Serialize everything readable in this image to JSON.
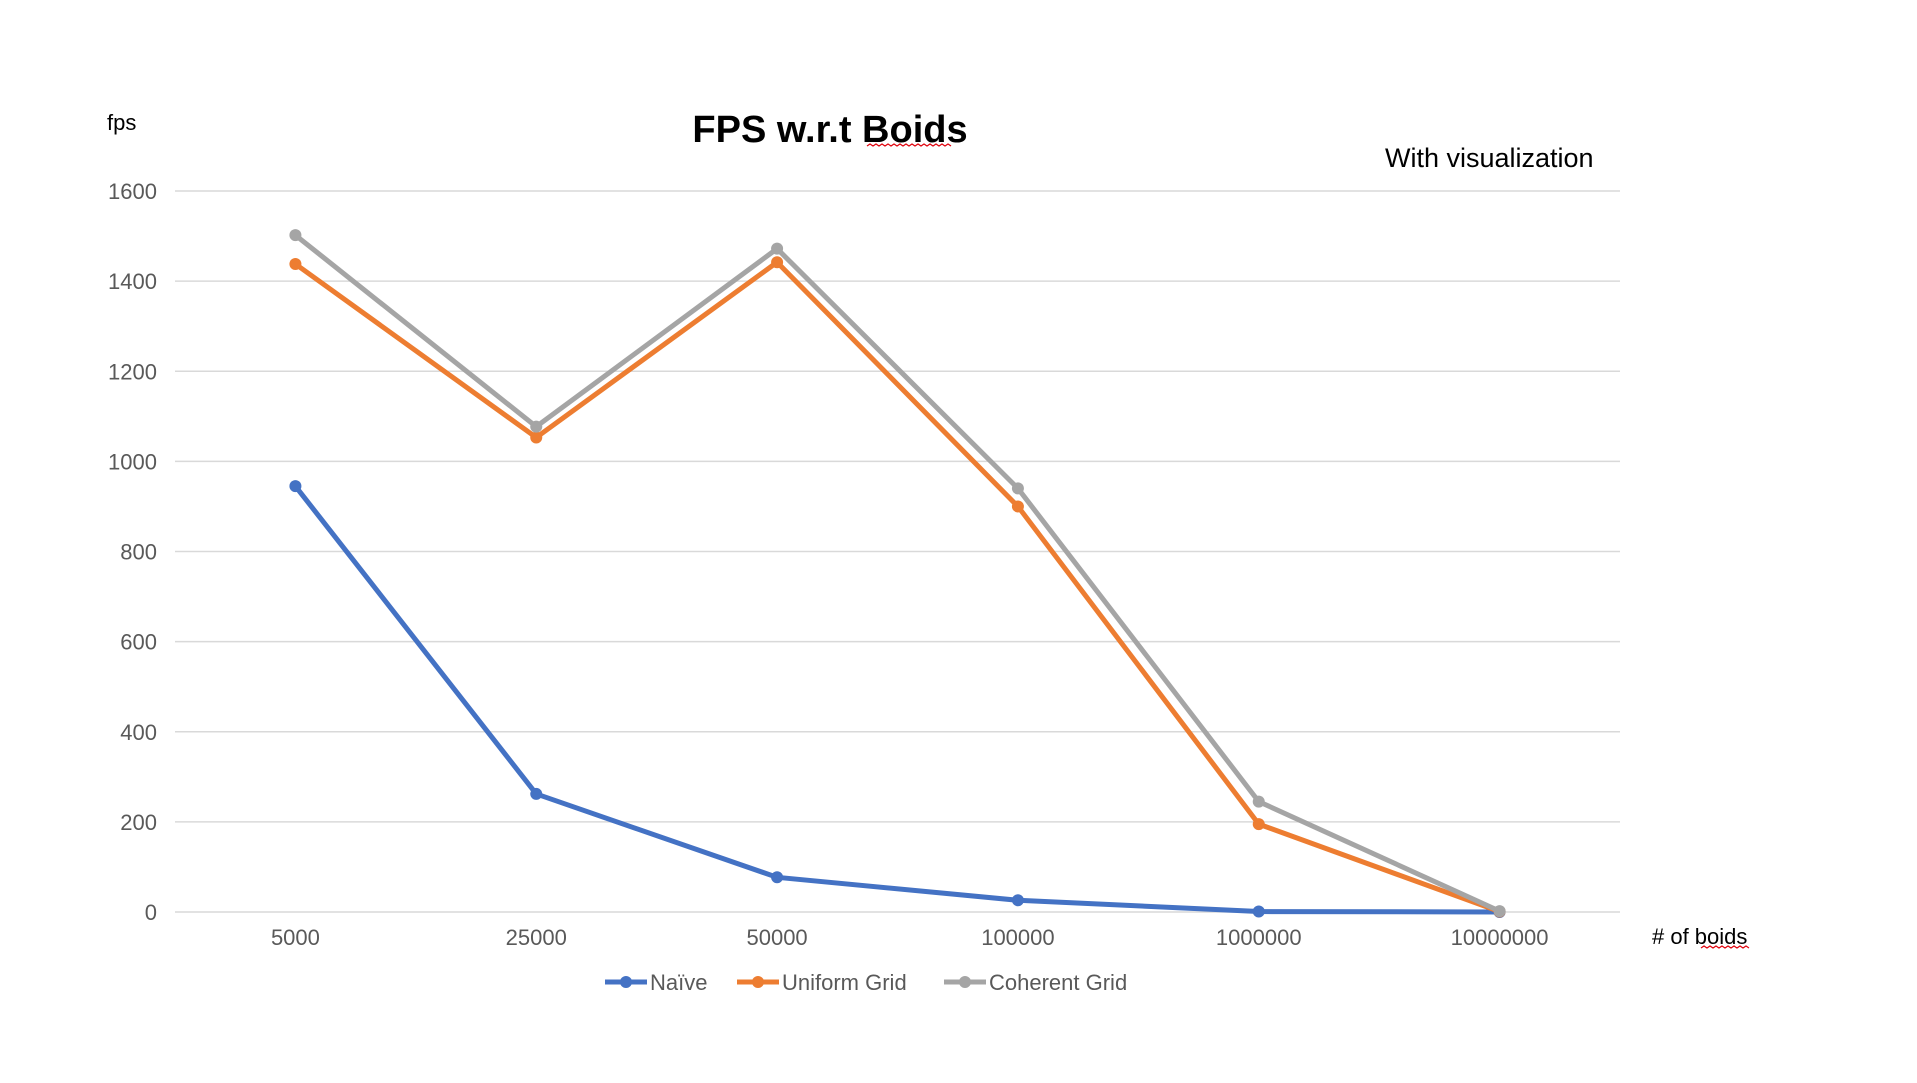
{
  "chart_data": {
    "type": "line",
    "title": "FPS w.r.t Boids",
    "annotation": "With visualization",
    "xlabel": "# of boids",
    "ylabel": "fps",
    "categories": [
      "5000",
      "25000",
      "50000",
      "100000",
      "1000000",
      "10000000"
    ],
    "ylim": [
      0,
      1600
    ],
    "yticks": [
      0,
      200,
      400,
      600,
      800,
      1000,
      1200,
      1400,
      1600
    ],
    "grid": true,
    "legend_position": "bottom",
    "series": [
      {
        "name": "Naïve",
        "color": "#4472c4",
        "values": [
          945,
          262,
          77,
          26,
          1,
          0
        ]
      },
      {
        "name": "Uniform Grid",
        "color": "#ed7d31",
        "values": [
          1438,
          1053,
          1442,
          900,
          195,
          1
        ]
      },
      {
        "name": "Coherent Grid",
        "color": "#a5a5a5",
        "values": [
          1502,
          1077,
          1472,
          940,
          245,
          2
        ]
      }
    ]
  }
}
